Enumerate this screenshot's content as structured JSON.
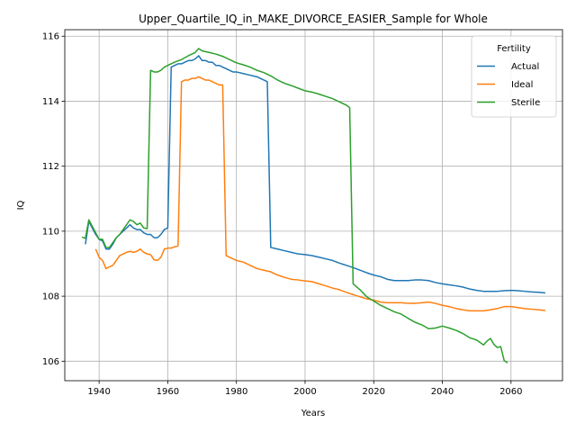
{
  "chart_data": {
    "type": "line",
    "title": "Upper_Quartile_IQ_in_MAKE_DIVORCE_EASIER_Sample for Whole",
    "xlabel": "Years",
    "ylabel": "IQ",
    "xlim": [
      1930,
      2075
    ],
    "ylim": [
      105.4,
      116.2
    ],
    "xticks": [
      1940,
      1960,
      1980,
      2000,
      2020,
      2040,
      2060
    ],
    "yticks": [
      106,
      108,
      110,
      112,
      114,
      116
    ],
    "grid": true,
    "legend": {
      "title": "Fertility",
      "placement": "top-right"
    },
    "series": [
      {
        "name": "Actual",
        "color": "#1f77b4",
        "points": [
          [
            1936,
            109.6
          ],
          [
            1937,
            110.3
          ],
          [
            1938,
            110.1
          ],
          [
            1939,
            109.9
          ],
          [
            1940,
            109.75
          ],
          [
            1941,
            109.7
          ],
          [
            1942,
            109.45
          ],
          [
            1943,
            109.45
          ],
          [
            1944,
            109.6
          ],
          [
            1945,
            109.8
          ],
          [
            1946,
            109.9
          ],
          [
            1947,
            110.0
          ],
          [
            1948,
            110.1
          ],
          [
            1949,
            110.2
          ],
          [
            1950,
            110.1
          ],
          [
            1951,
            110.05
          ],
          [
            1952,
            110.05
          ],
          [
            1953,
            109.95
          ],
          [
            1954,
            109.9
          ],
          [
            1955,
            109.9
          ],
          [
            1956,
            109.8
          ],
          [
            1957,
            109.8
          ],
          [
            1958,
            109.9
          ],
          [
            1959,
            110.05
          ],
          [
            1960,
            110.1
          ],
          [
            1961,
            115.05
          ],
          [
            1962,
            115.1
          ],
          [
            1963,
            115.15
          ],
          [
            1964,
            115.15
          ],
          [
            1965,
            115.2
          ],
          [
            1966,
            115.25
          ],
          [
            1967,
            115.25
          ],
          [
            1968,
            115.3
          ],
          [
            1969,
            115.4
          ],
          [
            1970,
            115.25
          ],
          [
            1971,
            115.25
          ],
          [
            1972,
            115.2
          ],
          [
            1973,
            115.2
          ],
          [
            1974,
            115.1
          ],
          [
            1975,
            115.1
          ],
          [
            1976,
            115.05
          ],
          [
            1977,
            115.0
          ],
          [
            1978,
            114.95
          ],
          [
            1979,
            114.9
          ],
          [
            1980,
            114.9
          ],
          [
            1982,
            114.85
          ],
          [
            1984,
            114.8
          ],
          [
            1986,
            114.75
          ],
          [
            1987,
            114.7
          ],
          [
            1988,
            114.65
          ],
          [
            1989,
            114.6
          ],
          [
            1990,
            109.5
          ],
          [
            1992,
            109.45
          ],
          [
            1994,
            109.4
          ],
          [
            1996,
            109.35
          ],
          [
            1998,
            109.3
          ],
          [
            2000,
            109.28
          ],
          [
            2002,
            109.25
          ],
          [
            2004,
            109.2
          ],
          [
            2006,
            109.15
          ],
          [
            2008,
            109.1
          ],
          [
            2010,
            109.02
          ],
          [
            2012,
            108.95
          ],
          [
            2014,
            108.88
          ],
          [
            2016,
            108.8
          ],
          [
            2018,
            108.72
          ],
          [
            2020,
            108.65
          ],
          [
            2022,
            108.6
          ],
          [
            2024,
            108.52
          ],
          [
            2026,
            108.48
          ],
          [
            2028,
            108.48
          ],
          [
            2030,
            108.48
          ],
          [
            2032,
            108.5
          ],
          [
            2034,
            108.5
          ],
          [
            2036,
            108.48
          ],
          [
            2038,
            108.42
          ],
          [
            2040,
            108.38
          ],
          [
            2042,
            108.35
          ],
          [
            2044,
            108.32
          ],
          [
            2046,
            108.28
          ],
          [
            2048,
            108.22
          ],
          [
            2050,
            108.18
          ],
          [
            2052,
            108.15
          ],
          [
            2054,
            108.15
          ],
          [
            2056,
            108.15
          ],
          [
            2058,
            108.17
          ],
          [
            2060,
            108.18
          ],
          [
            2062,
            108.17
          ],
          [
            2064,
            108.15
          ],
          [
            2066,
            108.13
          ],
          [
            2068,
            108.12
          ],
          [
            2070,
            108.1
          ]
        ]
      },
      {
        "name": "Ideal",
        "color": "#ff7f0e",
        "points": [
          [
            1939,
            109.45
          ],
          [
            1940,
            109.2
          ],
          [
            1941,
            109.1
          ],
          [
            1942,
            108.85
          ],
          [
            1943,
            108.9
          ],
          [
            1944,
            108.95
          ],
          [
            1945,
            109.1
          ],
          [
            1946,
            109.25
          ],
          [
            1947,
            109.3
          ],
          [
            1948,
            109.35
          ],
          [
            1949,
            109.38
          ],
          [
            1950,
            109.35
          ],
          [
            1951,
            109.38
          ],
          [
            1952,
            109.45
          ],
          [
            1953,
            109.35
          ],
          [
            1954,
            109.3
          ],
          [
            1955,
            109.28
          ],
          [
            1956,
            109.12
          ],
          [
            1957,
            109.1
          ],
          [
            1958,
            109.2
          ],
          [
            1959,
            109.45
          ],
          [
            1960,
            109.48
          ],
          [
            1961,
            109.48
          ],
          [
            1962,
            109.52
          ],
          [
            1963,
            109.55
          ],
          [
            1964,
            114.6
          ],
          [
            1965,
            114.65
          ],
          [
            1966,
            114.65
          ],
          [
            1967,
            114.7
          ],
          [
            1968,
            114.7
          ],
          [
            1969,
            114.75
          ],
          [
            1970,
            114.7
          ],
          [
            1971,
            114.65
          ],
          [
            1972,
            114.65
          ],
          [
            1973,
            114.6
          ],
          [
            1974,
            114.55
          ],
          [
            1975,
            114.5
          ],
          [
            1976,
            114.5
          ],
          [
            1977,
            109.25
          ],
          [
            1978,
            109.2
          ],
          [
            1980,
            109.1
          ],
          [
            1982,
            109.05
          ],
          [
            1984,
            108.95
          ],
          [
            1986,
            108.85
          ],
          [
            1988,
            108.8
          ],
          [
            1990,
            108.75
          ],
          [
            1992,
            108.65
          ],
          [
            1994,
            108.58
          ],
          [
            1996,
            108.52
          ],
          [
            1998,
            108.5
          ],
          [
            2000,
            108.47
          ],
          [
            2002,
            108.45
          ],
          [
            2004,
            108.38
          ],
          [
            2006,
            108.32
          ],
          [
            2008,
            108.25
          ],
          [
            2010,
            108.2
          ],
          [
            2012,
            108.12
          ],
          [
            2014,
            108.05
          ],
          [
            2016,
            107.98
          ],
          [
            2018,
            107.92
          ],
          [
            2020,
            107.88
          ],
          [
            2022,
            107.82
          ],
          [
            2024,
            107.8
          ],
          [
            2026,
            107.8
          ],
          [
            2028,
            107.8
          ],
          [
            2030,
            107.78
          ],
          [
            2032,
            107.78
          ],
          [
            2034,
            107.8
          ],
          [
            2036,
            107.82
          ],
          [
            2038,
            107.78
          ],
          [
            2040,
            107.72
          ],
          [
            2042,
            107.68
          ],
          [
            2044,
            107.62
          ],
          [
            2046,
            107.58
          ],
          [
            2048,
            107.55
          ],
          [
            2050,
            107.55
          ],
          [
            2052,
            107.55
          ],
          [
            2054,
            107.58
          ],
          [
            2056,
            107.62
          ],
          [
            2058,
            107.68
          ],
          [
            2060,
            107.68
          ],
          [
            2062,
            107.65
          ],
          [
            2064,
            107.62
          ],
          [
            2066,
            107.6
          ],
          [
            2068,
            107.58
          ],
          [
            2070,
            107.56
          ]
        ]
      },
      {
        "name": "Sterile",
        "color": "#2ca02c",
        "points": [
          [
            1935,
            109.82
          ],
          [
            1936,
            109.78
          ],
          [
            1937,
            110.35
          ],
          [
            1938,
            110.15
          ],
          [
            1939,
            109.95
          ],
          [
            1940,
            109.75
          ],
          [
            1941,
            109.75
          ],
          [
            1942,
            109.5
          ],
          [
            1943,
            109.5
          ],
          [
            1944,
            109.65
          ],
          [
            1945,
            109.8
          ],
          [
            1946,
            109.9
          ],
          [
            1947,
            110.05
          ],
          [
            1948,
            110.2
          ],
          [
            1949,
            110.35
          ],
          [
            1950,
            110.3
          ],
          [
            1951,
            110.2
          ],
          [
            1952,
            110.25
          ],
          [
            1953,
            110.1
          ],
          [
            1954,
            110.08
          ],
          [
            1955,
            114.95
          ],
          [
            1956,
            114.9
          ],
          [
            1957,
            114.9
          ],
          [
            1958,
            114.95
          ],
          [
            1959,
            115.05
          ],
          [
            1960,
            115.1
          ],
          [
            1962,
            115.2
          ],
          [
            1964,
            115.28
          ],
          [
            1966,
            115.4
          ],
          [
            1968,
            115.5
          ],
          [
            1969,
            115.62
          ],
          [
            1970,
            115.55
          ],
          [
            1972,
            115.5
          ],
          [
            1974,
            115.45
          ],
          [
            1976,
            115.38
          ],
          [
            1978,
            115.28
          ],
          [
            1980,
            115.18
          ],
          [
            1982,
            115.12
          ],
          [
            1984,
            115.05
          ],
          [
            1986,
            114.95
          ],
          [
            1988,
            114.88
          ],
          [
            1990,
            114.78
          ],
          [
            1992,
            114.65
          ],
          [
            1994,
            114.55
          ],
          [
            1996,
            114.48
          ],
          [
            1998,
            114.4
          ],
          [
            2000,
            114.32
          ],
          [
            2002,
            114.28
          ],
          [
            2004,
            114.22
          ],
          [
            2006,
            114.15
          ],
          [
            2008,
            114.08
          ],
          [
            2010,
            113.98
          ],
          [
            2012,
            113.88
          ],
          [
            2013,
            113.8
          ],
          [
            2014,
            108.38
          ],
          [
            2016,
            108.2
          ],
          [
            2018,
            107.98
          ],
          [
            2020,
            107.85
          ],
          [
            2022,
            107.72
          ],
          [
            2024,
            107.62
          ],
          [
            2026,
            107.52
          ],
          [
            2028,
            107.45
          ],
          [
            2030,
            107.32
          ],
          [
            2032,
            107.2
          ],
          [
            2034,
            107.12
          ],
          [
            2036,
            107.0
          ],
          [
            2038,
            107.02
          ],
          [
            2040,
            107.08
          ],
          [
            2042,
            107.02
          ],
          [
            2044,
            106.95
          ],
          [
            2046,
            106.85
          ],
          [
            2048,
            106.72
          ],
          [
            2050,
            106.65
          ],
          [
            2052,
            106.5
          ],
          [
            2053,
            106.62
          ],
          [
            2054,
            106.7
          ],
          [
            2055,
            106.52
          ],
          [
            2056,
            106.42
          ],
          [
            2057,
            106.45
          ],
          [
            2058,
            106.02
          ],
          [
            2059,
            105.95
          ]
        ]
      }
    ]
  }
}
